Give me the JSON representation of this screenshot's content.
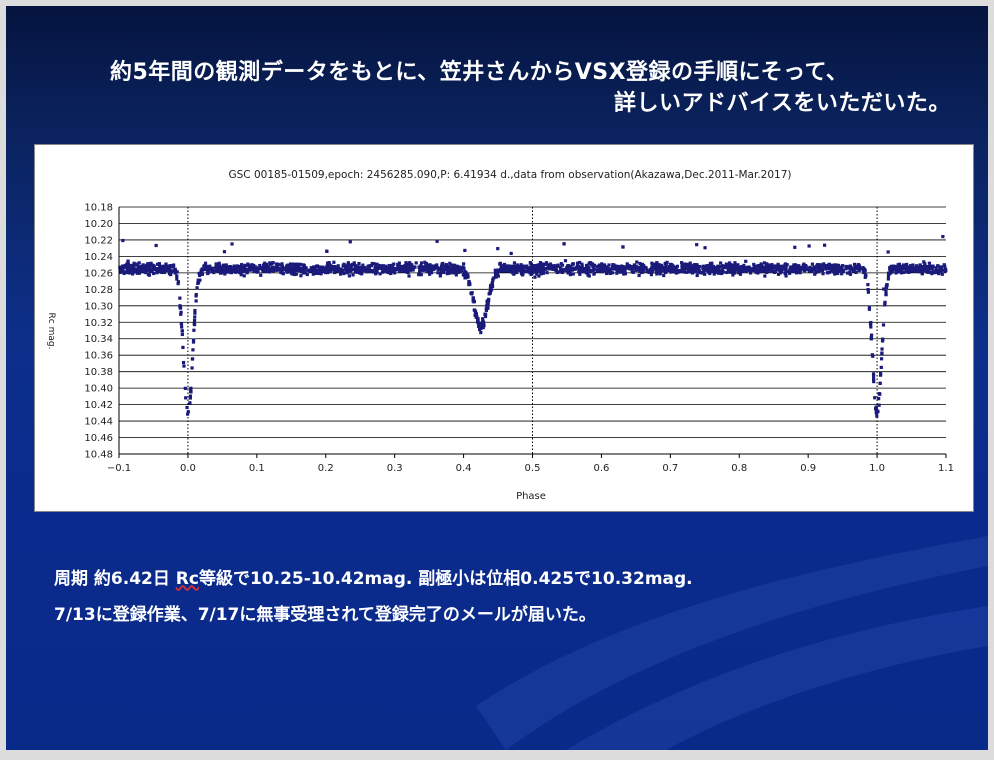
{
  "slide": {
    "title_line1": "約5年間の観測データをもとに、笠井さんからVSX登録の手順にそって、",
    "title_line2": "詳しいアドバイスをいただいた。",
    "body_line1": {
      "prefix": "周期   約6.42日   ",
      "rc": "Rc",
      "suffix": "等級で10.25-10.42mag.   副極小は位相0.425で10.32mag."
    },
    "body_line2": "7/13に登録作業、7/17に無事受理されて登録完了のメールが届いた。"
  },
  "chart_data": {
    "type": "scatter",
    "title": "GSC 00185-01509,epoch: 2456285.090,P: 6.41934 d.,data from observation(Akazawa,Dec.2011-Mar.2017)",
    "xlabel": "Phase",
    "ylabel": "Rc mag.",
    "xlim": [
      -0.1,
      1.1
    ],
    "ylim": [
      10.48,
      10.18
    ],
    "y_inverted": true,
    "x_ticks": [
      -0.1,
      0.0,
      0.1,
      0.2,
      0.3,
      0.4,
      0.5,
      0.6,
      0.7,
      0.8,
      0.9,
      1.0,
      1.1
    ],
    "x_tick_labels": [
      "−0.1",
      "0.0",
      "0.1",
      "0.2",
      "0.3",
      "0.4",
      "0.5",
      "0.6",
      "0.7",
      "0.8",
      "0.9",
      "1.0",
      "1.1"
    ],
    "y_ticks": [
      10.18,
      10.2,
      10.22,
      10.24,
      10.26,
      10.28,
      10.3,
      10.32,
      10.34,
      10.36,
      10.38,
      10.4,
      10.42,
      10.44,
      10.46,
      10.48
    ],
    "y_tick_labels": [
      "10.18",
      "10.20",
      "10.22",
      "10.24",
      "10.26",
      "10.28",
      "10.30",
      "10.32",
      "10.34",
      "10.36",
      "10.38",
      "10.40",
      "10.42",
      "10.44",
      "10.46",
      "10.48"
    ],
    "grid": "horizontal",
    "vertical_markers": [
      0.0,
      0.5,
      1.0
    ],
    "marker_color": "#1a1a7a",
    "light_curve_model": {
      "baseline": 10.255,
      "primary_min": {
        "phase": 0.0,
        "mag": 10.43
      },
      "secondary_min": {
        "phase": 0.425,
        "mag": 10.325
      }
    }
  }
}
